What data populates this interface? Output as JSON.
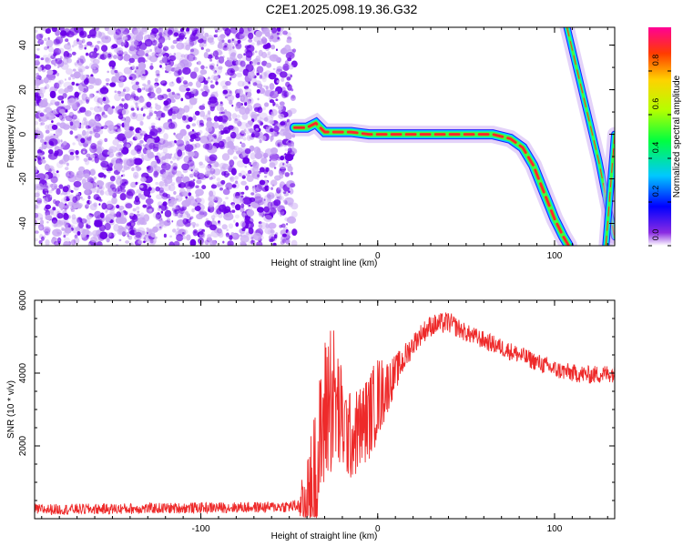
{
  "figure_title": "C2E1.2025.098.19.36.G32",
  "colors": {
    "frame": "#000000",
    "snr_line": "#ee2a2a",
    "noise_purple_dark": "#6a00e8",
    "noise_purple_light": "#c9a8f3"
  },
  "chart_data": [
    {
      "type": "heatmap",
      "title": "",
      "xlabel": "Height of straight line (km)",
      "ylabel": "Frequency (Hz)",
      "xlim": [
        -194,
        134
      ],
      "ylim": [
        -50,
        48
      ],
      "xticks": [
        -100,
        0,
        100
      ],
      "yticks": [
        40,
        20,
        0,
        -20,
        -40
      ],
      "grid": false,
      "colormap": "rainbow",
      "colorbar": {
        "label": "Normalized spectral amplitude",
        "range": [
          0.0,
          1.0
        ],
        "ticks": [
          "0.0",
          "0.2",
          "0.4",
          "0.6",
          "0.8"
        ]
      },
      "noise_region_x": [
        -194,
        -47
      ],
      "tracks": [
        {
          "description": "main frequency track",
          "points": [
            [
              -47,
              3
            ],
            [
              -40,
              3
            ],
            [
              -35,
              5
            ],
            [
              -30,
              1
            ],
            [
              -25,
              1
            ],
            [
              -15,
              1
            ],
            [
              -5,
              0
            ],
            [
              10,
              0
            ],
            [
              40,
              0
            ],
            [
              65,
              0
            ],
            [
              75,
              -2
            ],
            [
              82,
              -6
            ],
            [
              88,
              -14
            ],
            [
              94,
              -26
            ],
            [
              100,
              -38
            ],
            [
              105,
              -46
            ],
            [
              108,
              -50
            ]
          ]
        },
        {
          "description": "steep track",
          "points": [
            [
              107,
              48
            ],
            [
              113,
              28
            ],
            [
              119,
              8
            ],
            [
              125,
              -12
            ],
            [
              130,
              -32
            ],
            [
              134,
              -46
            ]
          ]
        },
        {
          "description": "right-edge track",
          "points": [
            [
              134,
              0
            ],
            [
              131,
              -30
            ],
            [
              129,
              -50
            ]
          ]
        }
      ]
    },
    {
      "type": "line",
      "title": "",
      "xlabel": "Height of straight line (km)",
      "ylabel": "SNR (10 * v/v)",
      "xlim": [
        -194,
        134
      ],
      "ylim": [
        0,
        6000
      ],
      "xticks": [
        -100,
        0,
        100
      ],
      "yticks": [
        2000,
        4000,
        6000
      ],
      "grid": false,
      "series": [
        {
          "envelope_x": [
            -194,
            -150,
            -100,
            -60,
            -45,
            -38,
            -34,
            -30,
            -27,
            -24,
            -20,
            -15,
            -10,
            -5,
            0,
            5,
            10,
            15,
            20,
            25,
            30,
            40,
            50,
            60,
            70,
            80,
            90,
            100,
            110,
            120,
            134
          ],
          "envelope_y": [
            250,
            270,
            300,
            320,
            350,
            600,
            1500,
            2800,
            3500,
            3200,
            2600,
            2200,
            2500,
            2800,
            3300,
            3600,
            4000,
            4400,
            4800,
            5100,
            5300,
            5400,
            5100,
            4900,
            4700,
            4500,
            4300,
            4100,
            4000,
            3950,
            4000
          ],
          "noise_amplitude_y": [
            150,
            150,
            150,
            150,
            180,
            1800,
            2000,
            2200,
            2400,
            2000,
            1500,
            1200,
            1200,
            1200,
            1200,
            800,
            500,
            400,
            300,
            300,
            300,
            300,
            250,
            250,
            250,
            250,
            250,
            250,
            250,
            250,
            250
          ]
        }
      ]
    }
  ]
}
